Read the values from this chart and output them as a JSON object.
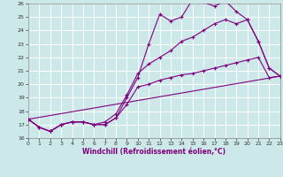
{
  "xlabel": "Windchill (Refroidissement éolien,°C)",
  "xlim": [
    0,
    23
  ],
  "ylim": [
    16,
    26
  ],
  "xticks": [
    0,
    1,
    2,
    3,
    4,
    5,
    6,
    7,
    8,
    9,
    10,
    11,
    12,
    13,
    14,
    15,
    16,
    17,
    18,
    19,
    20,
    21,
    22,
    23
  ],
  "yticks": [
    16,
    17,
    18,
    19,
    20,
    21,
    22,
    23,
    24,
    25,
    26
  ],
  "bg_color": "#cce8e8",
  "line_color": "#800080",
  "grid_color": "#ffffff",
  "line1_x": [
    0,
    1,
    2,
    3,
    4,
    5,
    6,
    7,
    8,
    9,
    10,
    11,
    12,
    13,
    14,
    15,
    16,
    17,
    18,
    19,
    20,
    21,
    22,
    23
  ],
  "line1_y": [
    17.4,
    16.8,
    16.5,
    17.0,
    17.2,
    17.2,
    17.0,
    17.0,
    17.5,
    19.0,
    20.5,
    23.0,
    25.2,
    24.7,
    25.0,
    26.3,
    26.1,
    25.8,
    26.2,
    25.4,
    24.8,
    23.2,
    21.2,
    20.6
  ],
  "line2_x": [
    0,
    1,
    2,
    3,
    4,
    5,
    6,
    7,
    8,
    9,
    10,
    11,
    12,
    13,
    14,
    15,
    16,
    17,
    18,
    19,
    20,
    21,
    22,
    23
  ],
  "line2_y": [
    17.4,
    16.8,
    16.5,
    17.0,
    17.2,
    17.2,
    17.0,
    17.2,
    17.8,
    19.2,
    20.8,
    21.5,
    22.0,
    22.5,
    23.2,
    23.5,
    24.0,
    24.5,
    24.8,
    24.5,
    24.8,
    23.2,
    21.2,
    20.6
  ],
  "line3_x": [
    0,
    23
  ],
  "line3_y": [
    17.4,
    20.6
  ],
  "line4_x": [
    0,
    1,
    2,
    3,
    4,
    5,
    6,
    7,
    8,
    9,
    10,
    11,
    12,
    13,
    14,
    15,
    16,
    17,
    18,
    19,
    20,
    21,
    22,
    23
  ],
  "line4_y": [
    17.4,
    16.8,
    16.5,
    17.0,
    17.2,
    17.2,
    17.0,
    17.0,
    17.5,
    18.5,
    19.8,
    20.0,
    20.3,
    20.5,
    20.7,
    20.8,
    21.0,
    21.2,
    21.4,
    21.6,
    21.8,
    22.0,
    20.5,
    20.6
  ]
}
